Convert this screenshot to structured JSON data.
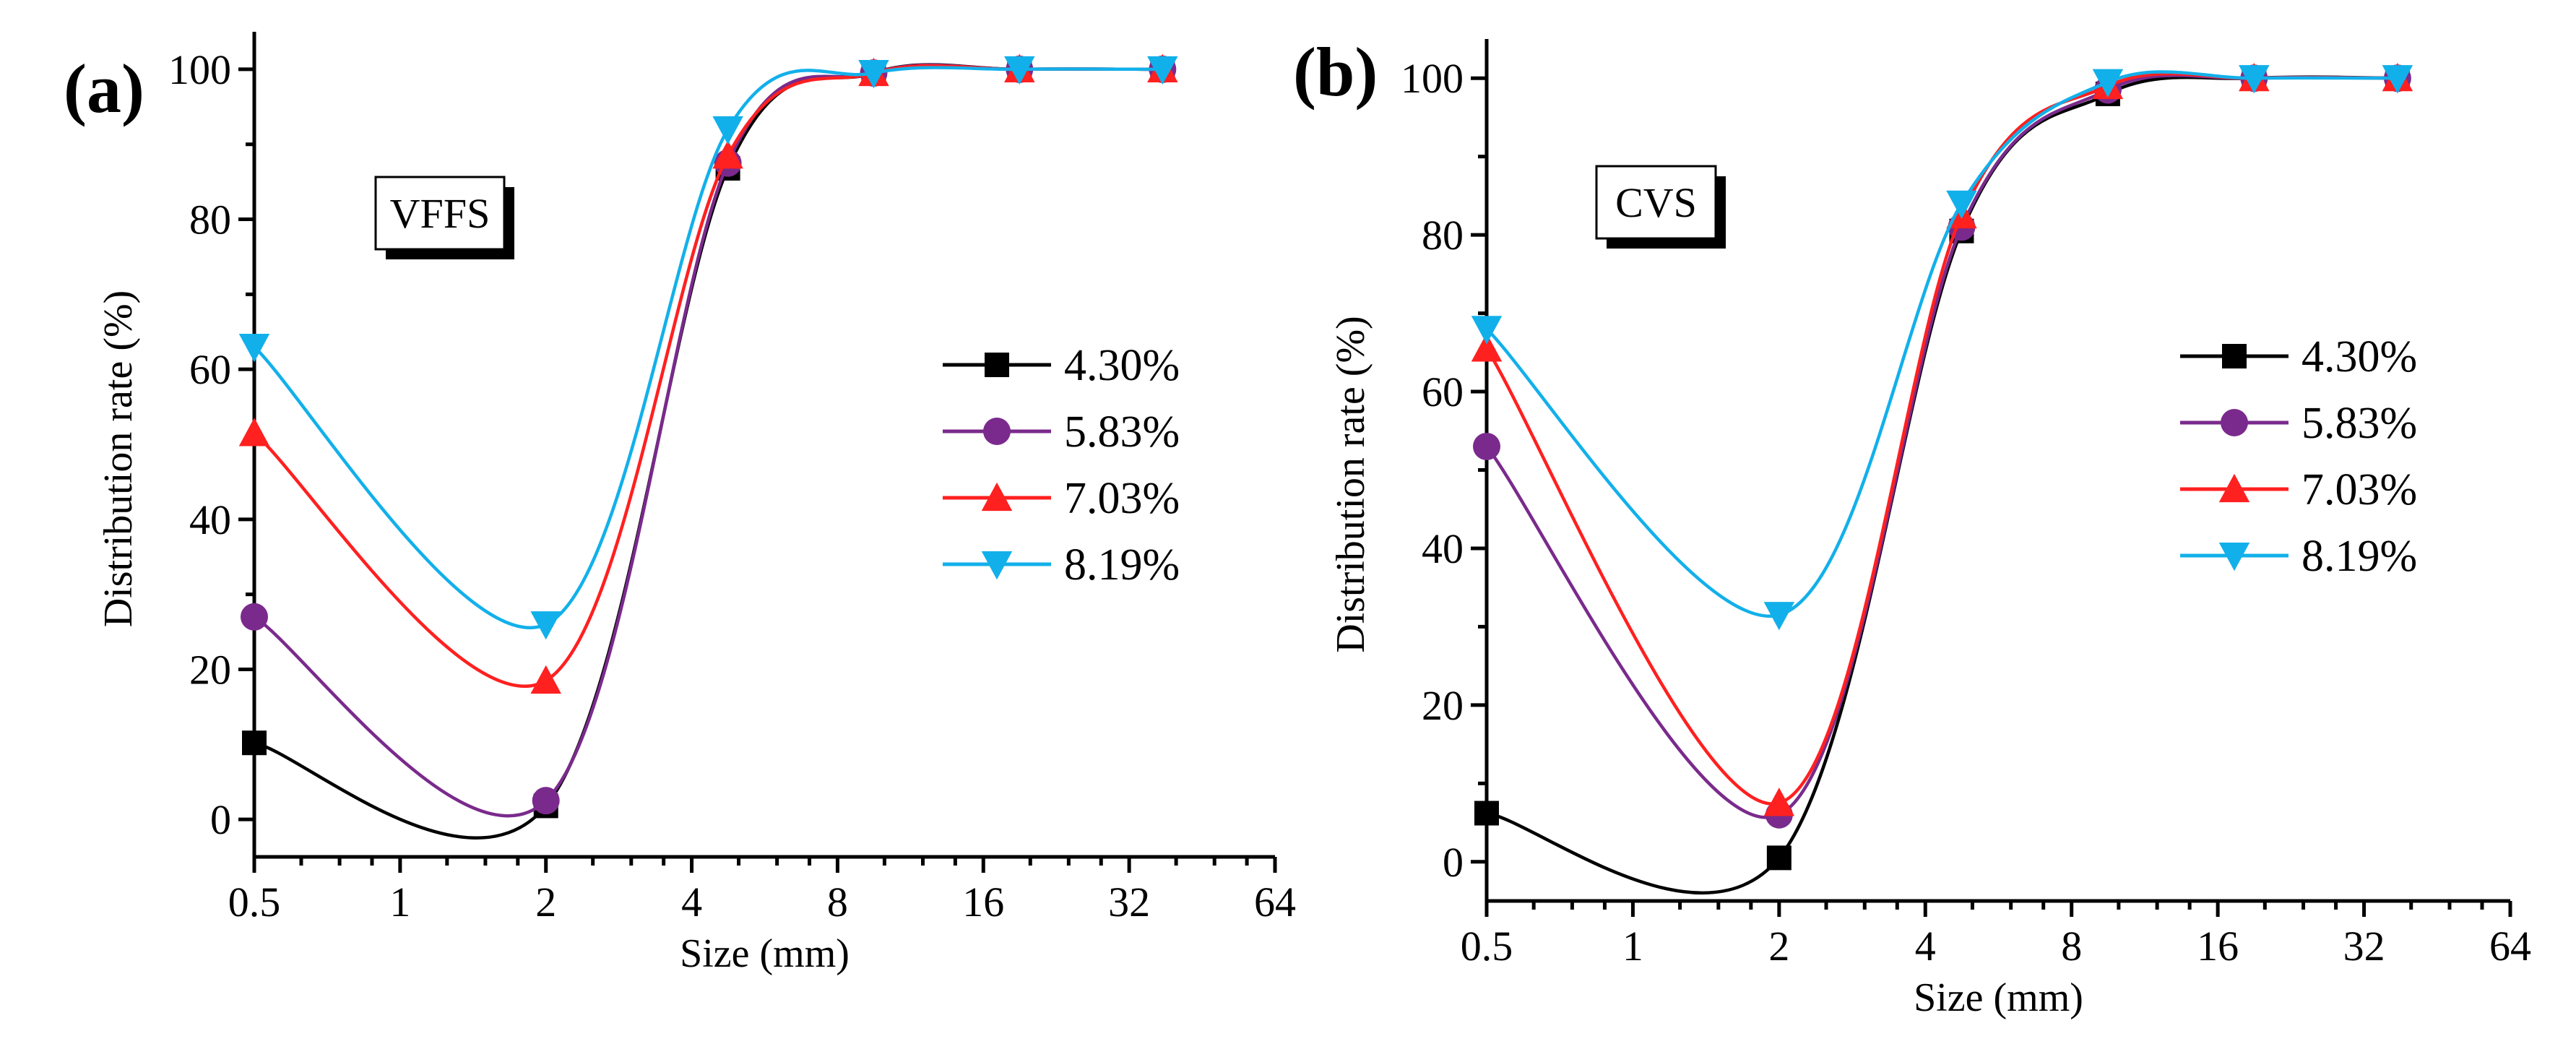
{
  "colors": {
    "4.30%": "#000000",
    "5.83%": "#7a2a8c",
    "7.03%": "#ff2020",
    "8.19%": "#12b0ea"
  },
  "chart_data": [
    {
      "type": "line",
      "panel_label": "(a)",
      "box_label": "VFFS",
      "xlabel": "Size (mm)",
      "ylabel": "Distribution rate (%)",
      "xscale": "log2",
      "xlim": [
        0.5,
        64
      ],
      "ylim": [
        -5,
        105
      ],
      "xticks": [
        0.5,
        1,
        2,
        4,
        8,
        16,
        32,
        64
      ],
      "xtick_labels": [
        "0.5",
        "1",
        "2",
        "4",
        "8",
        "16",
        "32",
        "64"
      ],
      "yticks": [
        0,
        20,
        40,
        60,
        80,
        100
      ],
      "ytick_labels": [
        "0",
        "20",
        "40",
        "60",
        "80",
        "100"
      ],
      "legend_position": "right-middle",
      "x": [
        0.5,
        2,
        4.75,
        9.5,
        19,
        37.5
      ],
      "series": [
        {
          "name": "4.30%",
          "marker": "square",
          "values": [
            10.2,
            1.8,
            86.8,
            99.5,
            100,
            100
          ]
        },
        {
          "name": "5.83%",
          "marker": "circle",
          "values": [
            27.0,
            2.5,
            87.5,
            99.5,
            100,
            100
          ]
        },
        {
          "name": "7.03%",
          "marker": "triangle-up",
          "values": [
            51.5,
            18.5,
            88.5,
            99.5,
            100,
            100
          ]
        },
        {
          "name": "8.19%",
          "marker": "triangle-down",
          "values": [
            63.0,
            26.0,
            92.0,
            99.5,
            100,
            100
          ]
        }
      ]
    },
    {
      "type": "line",
      "panel_label": "(b)",
      "box_label": "CVS",
      "xlabel": "Size (mm)",
      "ylabel": "Distribution rate (%)",
      "xscale": "log2",
      "xlim": [
        0.5,
        64
      ],
      "ylim": [
        -5,
        105
      ],
      "xticks": [
        0.5,
        1,
        2,
        4,
        8,
        16,
        32,
        64
      ],
      "xtick_labels": [
        "0.5",
        "1",
        "2",
        "4",
        "8",
        "16",
        "32",
        "64"
      ],
      "yticks": [
        0,
        20,
        40,
        60,
        80,
        100
      ],
      "ytick_labels": [
        "0",
        "20",
        "40",
        "60",
        "80",
        "100"
      ],
      "legend_position": "right-middle",
      "x": [
        0.5,
        2,
        4.75,
        9.5,
        19,
        37.5
      ],
      "series": [
        {
          "name": "4.30%",
          "marker": "square",
          "values": [
            6.2,
            0.5,
            80.5,
            98.0,
            100,
            100
          ]
        },
        {
          "name": "5.83%",
          "marker": "circle",
          "values": [
            53.0,
            6.0,
            81.0,
            98.5,
            100,
            100
          ]
        },
        {
          "name": "7.03%",
          "marker": "triangle-up",
          "values": [
            65.5,
            7.5,
            82.5,
            99.0,
            100,
            100
          ]
        },
        {
          "name": "8.19%",
          "marker": "triangle-down",
          "values": [
            68.0,
            31.5,
            84.0,
            99.5,
            100,
            100
          ]
        }
      ]
    }
  ]
}
